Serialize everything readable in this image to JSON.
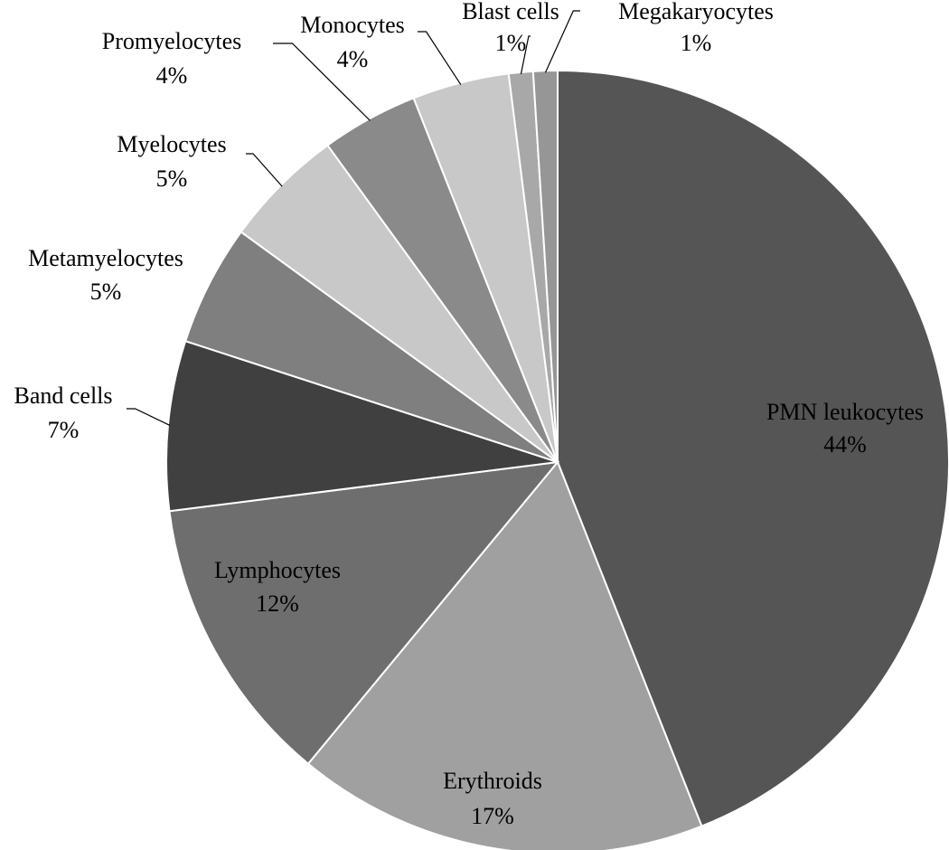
{
  "chart_data": {
    "type": "pie",
    "categories": [
      "PMN leukocytes",
      "Erythroids",
      "Lymphocytes",
      "Band cells",
      "Metamyelocytes",
      "Myelocytes",
      "Promyelocytes",
      "Monocytes",
      "Blast cells",
      "Megakaryocytes"
    ],
    "values": [
      44,
      17,
      12,
      7,
      5,
      5,
      4,
      4,
      1,
      1
    ],
    "value_labels": [
      "44%",
      "17%",
      "12%",
      "7%",
      "5%",
      "5%",
      "4%",
      "4%",
      "1%",
      "1%"
    ],
    "colors": [
      "#555555",
      "#a0a0a0",
      "#6e6e6e",
      "#404040",
      "#7f7f7f",
      "#c8c8c8",
      "#8a8a8a",
      "#c8c8c8",
      "#a8a8a8",
      "#969696"
    ]
  }
}
